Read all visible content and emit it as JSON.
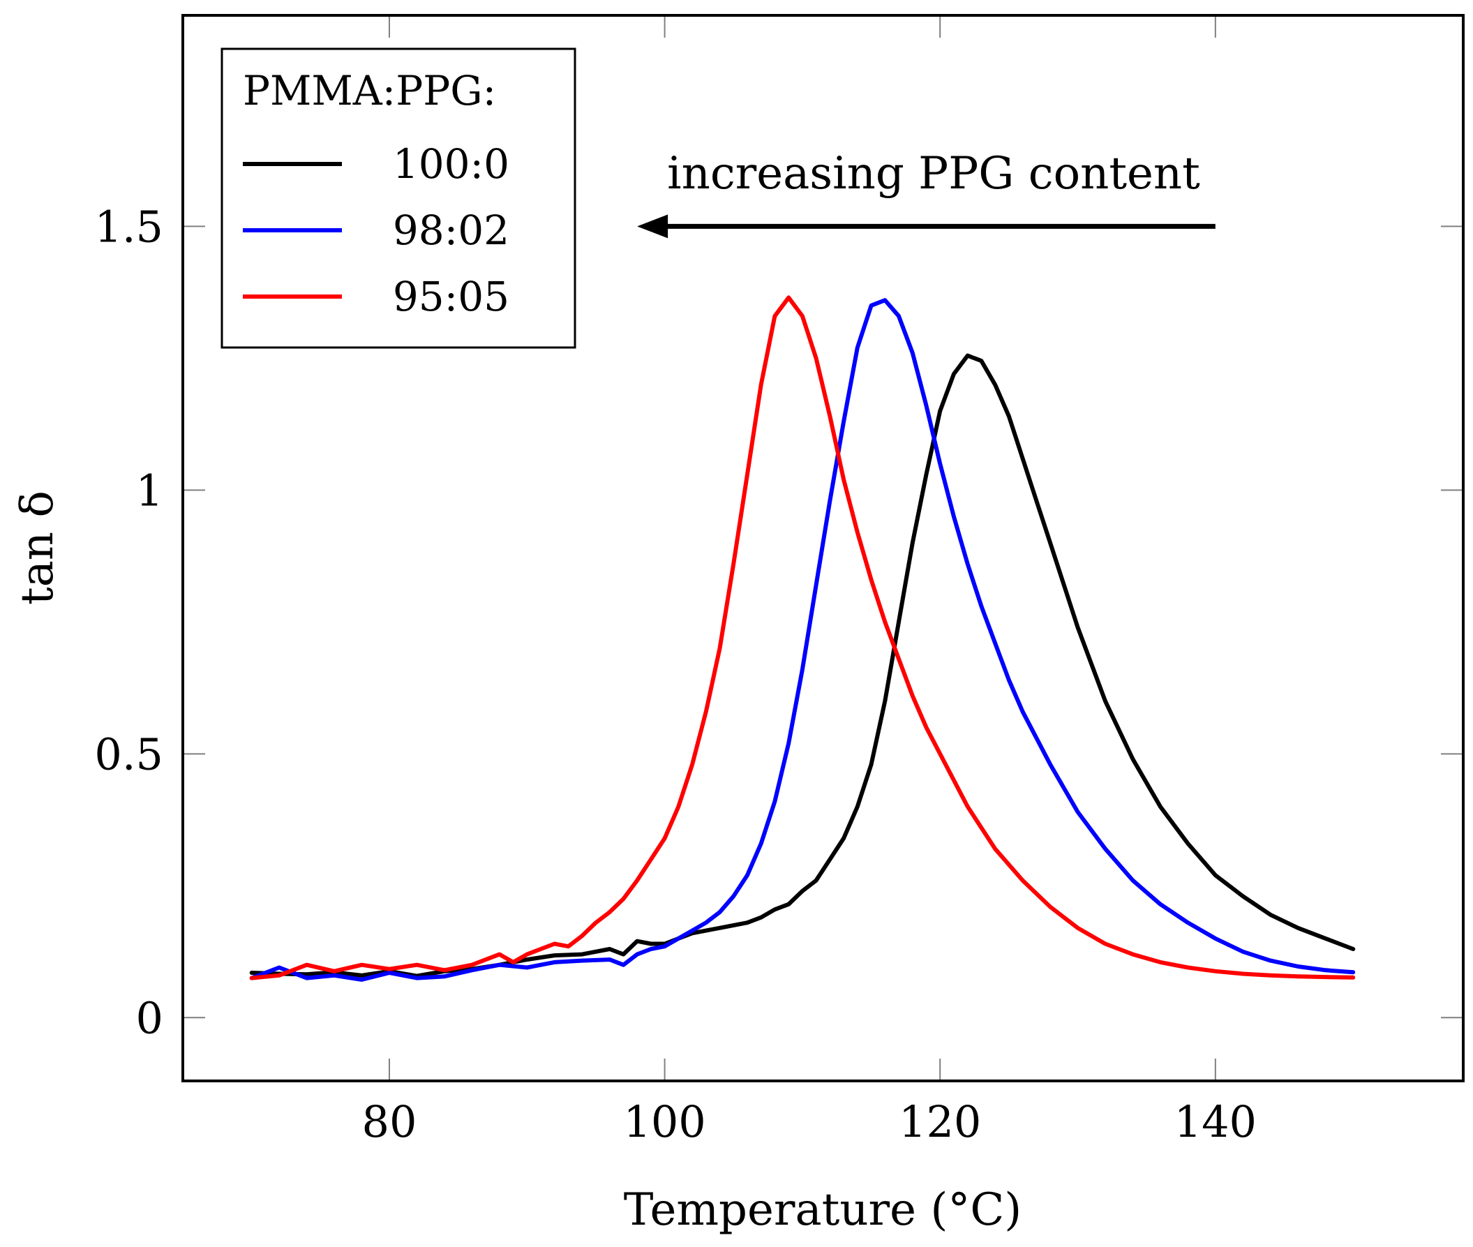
{
  "chart_data": {
    "type": "line",
    "title": "",
    "xlabel": "Temperature (°C)",
    "ylabel": "tan δ",
    "xlim": [
      65,
      158
    ],
    "ylim": [
      -0.12,
      1.9
    ],
    "xticks": [
      80,
      100,
      120,
      140
    ],
    "xtick_labels": [
      "80",
      "100",
      "120",
      "140"
    ],
    "yticks": [
      0,
      0.5,
      1,
      1.5
    ],
    "ytick_labels": [
      "0",
      "0.5",
      "1",
      "1.5"
    ],
    "grid": false,
    "legend": {
      "title": "PMMA:PPG:",
      "position": "top-left"
    },
    "annotation": {
      "text": "increasing PPG content",
      "arrow_from": [
        140,
        1.5
      ],
      "arrow_to": [
        98,
        1.5
      ]
    },
    "series": [
      {
        "name": "100:0",
        "color": "#000000",
        "x": [
          70,
          72,
          74,
          76,
          78,
          80,
          82,
          84,
          86,
          88,
          90,
          92,
          94,
          96,
          97,
          98,
          99,
          100,
          102,
          104,
          106,
          107,
          108,
          109,
          110,
          111,
          112,
          113,
          114,
          115,
          116,
          117,
          118,
          119,
          120,
          121,
          122,
          123,
          124,
          125,
          126,
          127,
          128,
          129,
          130,
          132,
          134,
          136,
          138,
          140,
          142,
          144,
          146,
          148,
          150
        ],
        "y": [
          0.085,
          0.083,
          0.082,
          0.086,
          0.08,
          0.088,
          0.079,
          0.088,
          0.092,
          0.1,
          0.11,
          0.118,
          0.12,
          0.13,
          0.12,
          0.145,
          0.14,
          0.14,
          0.16,
          0.17,
          0.18,
          0.19,
          0.205,
          0.215,
          0.24,
          0.26,
          0.3,
          0.34,
          0.4,
          0.48,
          0.6,
          0.75,
          0.9,
          1.03,
          1.15,
          1.22,
          1.255,
          1.245,
          1.2,
          1.14,
          1.06,
          0.98,
          0.9,
          0.82,
          0.74,
          0.6,
          0.49,
          0.4,
          0.33,
          0.27,
          0.23,
          0.195,
          0.17,
          0.15,
          0.13
        ]
      },
      {
        "name": "98:02",
        "color": "#0000ff",
        "x": [
          70,
          72,
          74,
          76,
          78,
          80,
          82,
          84,
          86,
          88,
          90,
          92,
          94,
          96,
          97,
          98,
          99,
          100,
          101,
          102,
          103,
          104,
          105,
          106,
          107,
          108,
          109,
          110,
          111,
          112,
          113,
          114,
          115,
          116,
          117,
          118,
          119,
          120,
          121,
          122,
          123,
          124,
          125,
          126,
          128,
          130,
          132,
          134,
          136,
          138,
          140,
          142,
          144,
          146,
          148,
          150
        ],
        "y": [
          0.075,
          0.095,
          0.075,
          0.08,
          0.072,
          0.085,
          0.075,
          0.078,
          0.09,
          0.1,
          0.095,
          0.105,
          0.108,
          0.11,
          0.1,
          0.12,
          0.13,
          0.135,
          0.15,
          0.165,
          0.18,
          0.2,
          0.23,
          0.27,
          0.33,
          0.41,
          0.52,
          0.66,
          0.82,
          0.98,
          1.13,
          1.27,
          1.35,
          1.36,
          1.33,
          1.26,
          1.16,
          1.05,
          0.95,
          0.86,
          0.78,
          0.71,
          0.64,
          0.58,
          0.48,
          0.39,
          0.32,
          0.26,
          0.215,
          0.18,
          0.15,
          0.125,
          0.108,
          0.097,
          0.09,
          0.086
        ]
      },
      {
        "name": "95:05",
        "color": "#ff0000",
        "x": [
          70,
          72,
          74,
          76,
          78,
          80,
          82,
          84,
          86,
          88,
          89,
          90,
          91,
          92,
          93,
          94,
          95,
          96,
          97,
          98,
          99,
          100,
          101,
          102,
          103,
          104,
          105,
          106,
          107,
          108,
          109,
          110,
          111,
          112,
          113,
          114,
          115,
          116,
          117,
          118,
          119,
          120,
          122,
          124,
          126,
          128,
          130,
          132,
          134,
          136,
          138,
          140,
          142,
          144,
          146,
          148,
          150
        ],
        "y": [
          0.075,
          0.08,
          0.1,
          0.088,
          0.1,
          0.092,
          0.1,
          0.09,
          0.1,
          0.12,
          0.105,
          0.12,
          0.13,
          0.14,
          0.135,
          0.155,
          0.18,
          0.2,
          0.225,
          0.26,
          0.3,
          0.34,
          0.4,
          0.48,
          0.58,
          0.7,
          0.86,
          1.03,
          1.2,
          1.33,
          1.365,
          1.33,
          1.25,
          1.14,
          1.02,
          0.92,
          0.83,
          0.75,
          0.68,
          0.61,
          0.55,
          0.5,
          0.4,
          0.32,
          0.26,
          0.21,
          0.17,
          0.14,
          0.12,
          0.105,
          0.095,
          0.088,
          0.083,
          0.08,
          0.078,
          0.077,
          0.076
        ]
      }
    ]
  }
}
